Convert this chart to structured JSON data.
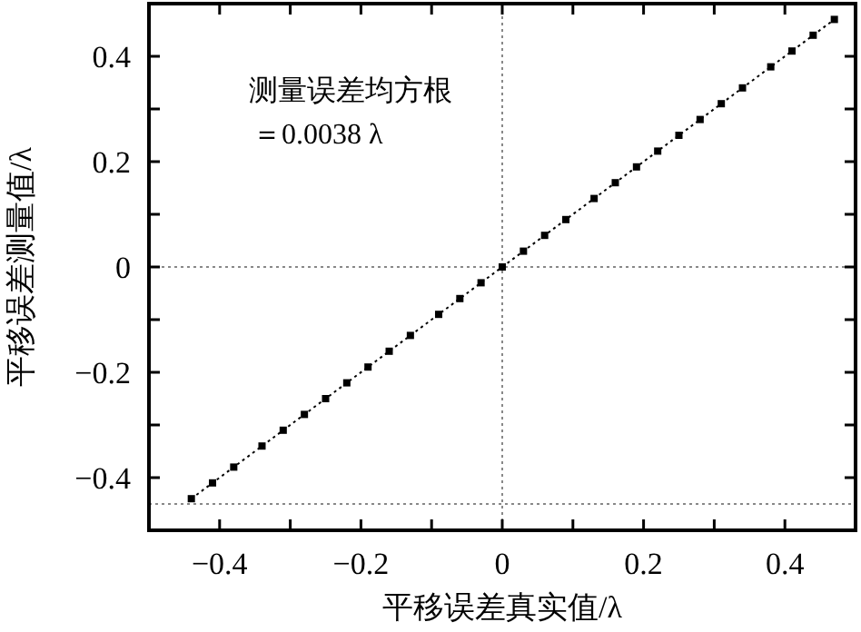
{
  "chart_data": {
    "type": "line",
    "xlabel": "平移误差真实值/λ",
    "ylabel": "平移误差测量值/λ",
    "annotations": [
      "测量误差均方根",
      "＝0.0038 λ"
    ],
    "x": [
      -0.44,
      -0.41,
      -0.38,
      -0.34,
      -0.31,
      -0.28,
      -0.25,
      -0.22,
      -0.19,
      -0.16,
      -0.13,
      -0.09,
      -0.06,
      -0.03,
      0,
      0.03,
      0.06,
      0.09,
      0.13,
      0.16,
      0.19,
      0.22,
      0.25,
      0.28,
      0.31,
      0.34,
      0.38,
      0.41,
      0.44,
      0.47
    ],
    "series": [
      {
        "color": "#000000",
        "values": [
          -0.44,
          -0.41,
          -0.38,
          -0.34,
          -0.31,
          -0.28,
          -0.25,
          -0.22,
          -0.19,
          -0.16,
          -0.13,
          -0.09,
          -0.06,
          -0.03,
          0,
          0.03,
          0.06,
          0.09,
          0.13,
          0.16,
          0.19,
          0.22,
          0.25,
          0.28,
          0.31,
          0.34,
          0.38,
          0.41,
          0.44,
          0.47
        ]
      }
    ],
    "marker": "square",
    "line_style": "dotted",
    "grid": false,
    "xlim": [
      -0.5,
      0.5
    ],
    "ylim": [
      -0.5,
      0.5
    ],
    "xticks": [
      {
        "value": -0.4,
        "label": "−0.4"
      },
      {
        "value": -0.3,
        "label": null
      },
      {
        "value": -0.2,
        "label": "−0.2"
      },
      {
        "value": -0.1,
        "label": null
      },
      0,
      {
        "value": 0.1,
        "label": null
      },
      0.2,
      {
        "value": 0.3,
        "label": null
      },
      0.4
    ],
    "yticks": [
      {
        "value": -0.4,
        "label": "−0.4"
      },
      {
        "value": -0.3,
        "label": null
      },
      {
        "value": -0.2,
        "label": "−0.2"
      },
      {
        "value": -0.1,
        "label": null
      },
      0,
      {
        "value": 0.1,
        "label": null
      },
      0.2,
      {
        "value": 0.3,
        "label": null
      },
      0.4
    ],
    "ref_lines": [
      {
        "axis": "x",
        "value": 0,
        "color": "#888888",
        "line_style": "dotted"
      },
      {
        "axis": "y",
        "value": 0,
        "color": "#888888",
        "line_style": "dotted"
      },
      {
        "axis": "y",
        "value": -0.45,
        "color": "#888888",
        "line_style": "dotted"
      }
    ]
  }
}
